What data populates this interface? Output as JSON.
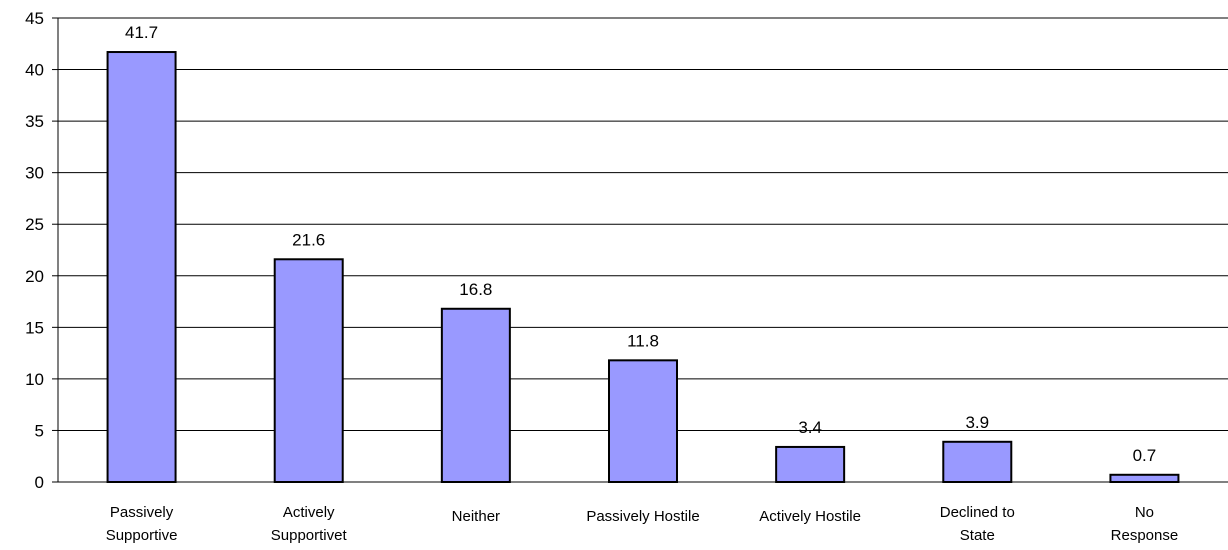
{
  "chart_data": {
    "type": "bar",
    "title": "",
    "xlabel": "",
    "ylabel": "",
    "ylim": [
      0,
      45
    ],
    "yticks": [
      0,
      5,
      10,
      15,
      20,
      25,
      30,
      35,
      40,
      45
    ],
    "grid": true,
    "legend": "none",
    "categories": [
      [
        "Passively",
        "Supportive"
      ],
      [
        "Actively",
        "Supportivet"
      ],
      [
        "Neither"
      ],
      [
        "Passively Hostile"
      ],
      [
        "Actively Hostile"
      ],
      [
        "Declined to",
        "State"
      ],
      [
        "No",
        "Response"
      ]
    ],
    "values": [
      41.7,
      21.6,
      16.8,
      11.8,
      3.4,
      3.9,
      0.7
    ],
    "data_labels": [
      "41.7",
      "21.6",
      "16.8",
      "11.8",
      "3.4",
      "3.9",
      "0.7"
    ],
    "colors": {
      "bar_fill": "#9999ff",
      "bar_stroke": "#000000",
      "grid": "#000000",
      "axis": "#000000"
    }
  }
}
